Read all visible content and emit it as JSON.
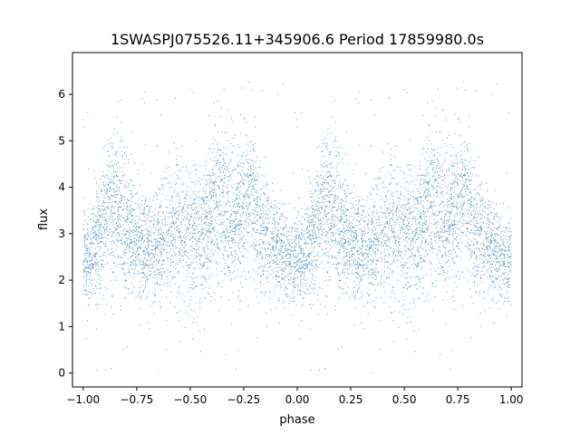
{
  "chart_data": {
    "type": "scatter",
    "title": "1SWASPJ075526.11+345906.6 Period 17859980.0s",
    "xlabel": "phase",
    "ylabel": "flux",
    "xlim": [
      -1.05,
      1.05
    ],
    "ylim": [
      -0.3,
      6.9
    ],
    "xticks": [
      -1.0,
      -0.75,
      -0.5,
      -0.25,
      0.0,
      0.25,
      0.5,
      0.75,
      1.0
    ],
    "xtick_labels": [
      "−1.00",
      "−0.75",
      "−0.50",
      "−0.25",
      "0.00",
      "0.25",
      "0.50",
      "0.75",
      "1.00"
    ],
    "yticks": [
      0,
      1,
      2,
      3,
      4,
      5,
      6
    ],
    "ytick_labels": [
      "0",
      "1",
      "2",
      "3",
      "4",
      "5",
      "6"
    ],
    "grid": false,
    "point_color": "#1f77b4",
    "profile": {
      "phase": [
        0.0,
        0.03,
        0.06,
        0.09,
        0.12,
        0.15,
        0.18,
        0.21,
        0.24,
        0.27,
        0.3,
        0.33,
        0.36,
        0.39,
        0.42,
        0.45,
        0.48,
        0.51,
        0.54,
        0.57,
        0.6,
        0.63,
        0.66,
        0.69,
        0.72,
        0.75,
        0.78,
        0.81,
        0.84,
        0.87,
        0.9,
        0.93,
        0.96,
        0.99
      ],
      "median_flux": [
        2.4,
        2.5,
        2.8,
        3.2,
        3.6,
        3.7,
        3.5,
        3.2,
        2.9,
        2.7,
        2.6,
        2.6,
        2.8,
        3.0,
        3.0,
        3.1,
        3.0,
        2.9,
        3.0,
        3.2,
        3.4,
        3.6,
        3.5,
        3.2,
        3.3,
        3.6,
        3.8,
        3.4,
        3.0,
        2.8,
        2.7,
        2.6,
        2.5,
        2.4
      ],
      "spread": [
        0.45,
        0.5,
        0.6,
        0.75,
        0.8,
        0.8,
        0.75,
        0.7,
        0.65,
        0.6,
        0.55,
        0.6,
        0.65,
        0.7,
        0.75,
        0.8,
        0.75,
        0.7,
        0.7,
        0.75,
        0.8,
        0.85,
        0.8,
        0.75,
        0.8,
        0.85,
        0.8,
        0.75,
        0.65,
        0.6,
        0.55,
        0.5,
        0.5,
        0.45
      ]
    }
  }
}
